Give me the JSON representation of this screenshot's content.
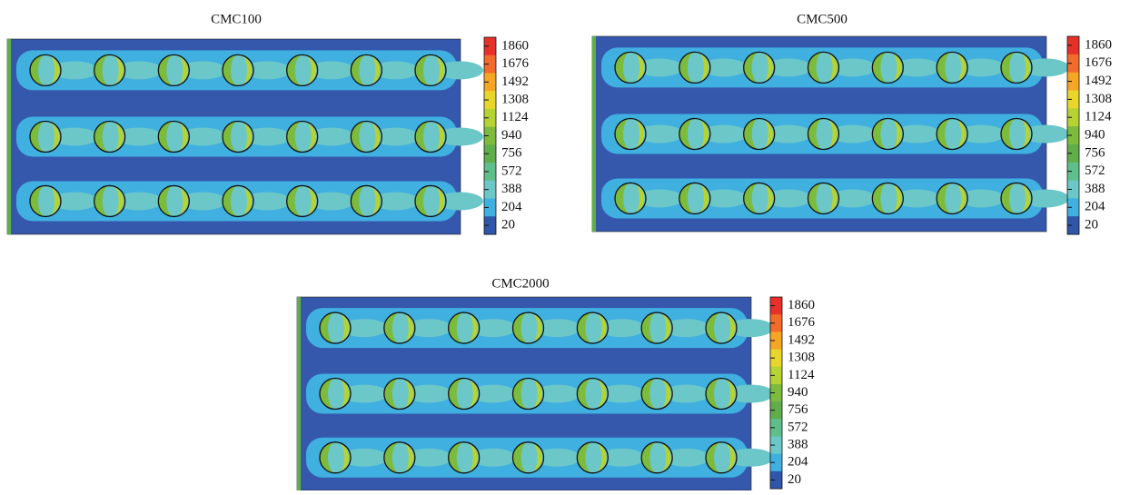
{
  "colorbar_colors": [
    "#e8302a",
    "#f26b2a",
    "#f5a623",
    "#e8d62a",
    "#b6d334",
    "#7dbb3c",
    "#5fae4a",
    "#5fbf8a",
    "#6cc7c9",
    "#3fb0e0",
    "#2f56a8"
  ],
  "panels": [
    {
      "title": "CMC100",
      "colorbar": {
        "ticks": [
          1860,
          1676,
          1492,
          1308,
          1124,
          940,
          756,
          572,
          388,
          204,
          20
        ]
      }
    },
    {
      "title": "CMC500",
      "colorbar": {
        "ticks": [
          1860,
          1676,
          1492,
          1308,
          1124,
          940,
          756,
          572,
          388,
          204,
          20
        ]
      }
    },
    {
      "title": "CMC2000",
      "colorbar": {
        "ticks": [
          1860,
          1676,
          1492,
          1308,
          1124,
          940,
          756,
          572,
          388,
          204,
          20
        ]
      }
    }
  ]
}
